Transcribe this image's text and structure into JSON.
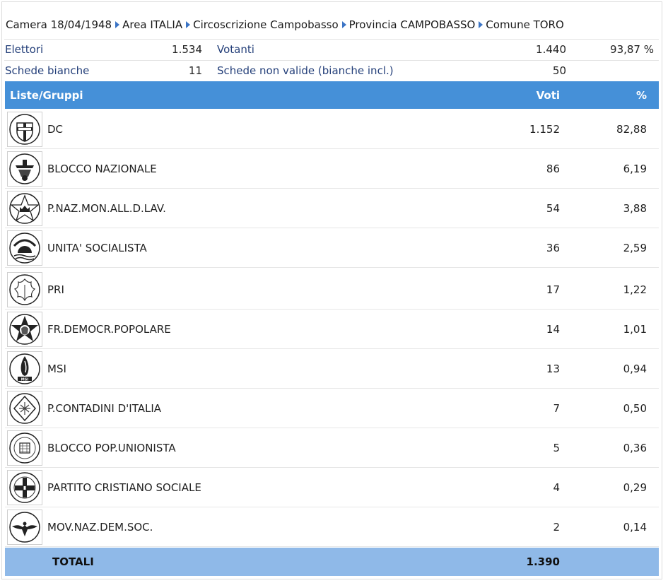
{
  "breadcrumb": [
    "Camera 18/04/1948",
    "Area ITALIA",
    "Circoscrizione Campobasso",
    "Provincia CAMPOBASSO",
    "Comune TORO"
  ],
  "stats": {
    "elettori_label": "Elettori",
    "elettori_value": "1.534",
    "votanti_label": "Votanti",
    "votanti_value": "1.440",
    "votanti_pct": "93,87 %",
    "bianche_label": "Schede bianche",
    "bianche_value": "11",
    "non_valide_label": "Schede non valide (bianche incl.)",
    "non_valide_value": "50"
  },
  "table": {
    "col_lists": "Liste/Gruppi",
    "col_voti": "Voti",
    "col_pct": "%"
  },
  "parties": [
    {
      "name": "DC",
      "voti": "1.152",
      "pct": "82,88",
      "logo": "dc-shield-icon"
    },
    {
      "name": "BLOCCO NAZIONALE",
      "voti": "86",
      "pct": "6,19",
      "logo": "blocco-nazionale-icon"
    },
    {
      "name": "P.NAZ.MON.ALL.D.LAV.",
      "voti": "54",
      "pct": "3,88",
      "logo": "star-crown-icon"
    },
    {
      "name": "UNITA' SOCIALISTA",
      "voti": "36",
      "pct": "2,59",
      "logo": "sun-socialismo-icon"
    },
    {
      "name": "PRI",
      "voti": "17",
      "pct": "1,22",
      "logo": "ivy-leaf-icon"
    },
    {
      "name": "FR.DEMOCR.POPOLARE",
      "voti": "14",
      "pct": "1,01",
      "logo": "garibaldi-star-icon"
    },
    {
      "name": "MSI",
      "voti": "13",
      "pct": "0,94",
      "logo": "tricolor-flame-icon"
    },
    {
      "name": "P.CONTADINI D'ITALIA",
      "voti": "7",
      "pct": "0,50",
      "logo": "contadini-emblem-icon"
    },
    {
      "name": "BLOCCO POP.UNIONISTA",
      "voti": "5",
      "pct": "0,36",
      "logo": "unionista-emblem-icon"
    },
    {
      "name": "PARTITO CRISTIANO SOCIALE",
      "voti": "4",
      "pct": "0,29",
      "logo": "cristiano-sociale-icon"
    },
    {
      "name": "MOV.NAZ.DEM.SOC.",
      "voti": "2",
      "pct": "0,14",
      "logo": "eagle-emblem-icon"
    }
  ],
  "totals": {
    "label": "TOTALI",
    "voti": "1.390"
  }
}
